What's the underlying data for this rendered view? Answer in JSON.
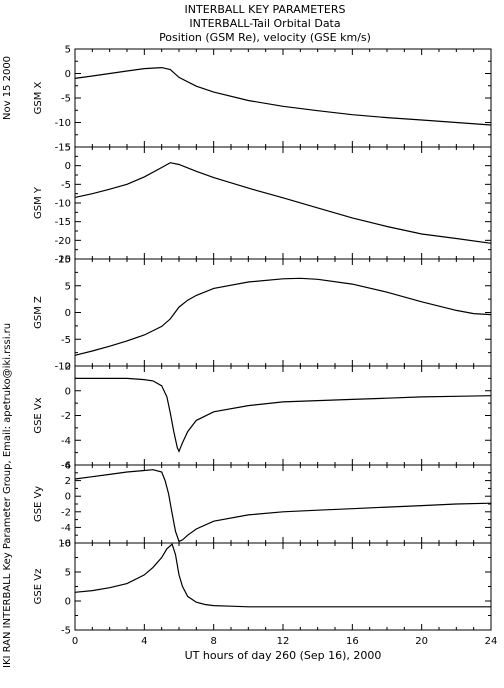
{
  "side_texts": {
    "date": "Nov 15 2000",
    "credit": "IKI RAN INTERBALL Key Parameter Group, Email: apetruko@iki.rssi.ru"
  },
  "chart_data": {
    "type": "line",
    "title_lines": [
      "INTERBALL KEY PARAMETERS",
      "INTERBALL-Tail Orbital Data",
      "Position (GSM Re), velocity (GSE km/s)"
    ],
    "xlabel": "UT hours of day 260 (Sep 16), 2000",
    "xlim": [
      0,
      24
    ],
    "xticks": [
      "0",
      "4",
      "8",
      "12",
      "16",
      "20",
      "24"
    ],
    "grid": false,
    "color": "#000000",
    "panels": [
      {
        "ylabel": "GSM X",
        "ylim": [
          -15,
          5
        ],
        "yticks": [
          "5",
          "0",
          "-5",
          "-10",
          "-15"
        ],
        "x": [
          0,
          1,
          2,
          3,
          4,
          5,
          5.5,
          6,
          7,
          8,
          10,
          12,
          14,
          16,
          18,
          20,
          22,
          24
        ],
        "y": [
          -1,
          -0.5,
          0,
          0.5,
          1,
          1.2,
          0.8,
          -0.8,
          -2.6,
          -3.8,
          -5.5,
          -6.7,
          -7.6,
          -8.4,
          -9.0,
          -9.5,
          -10.0,
          -10.5
        ]
      },
      {
        "ylabel": "GSM Y",
        "ylim": [
          -25,
          5
        ],
        "yticks": [
          "5",
          "0",
          "-5",
          "-10",
          "-15",
          "-20",
          "-25"
        ],
        "x": [
          0,
          1,
          2,
          3,
          4,
          5,
          5.5,
          6,
          7,
          8,
          10,
          12,
          14,
          16,
          18,
          20,
          22,
          24
        ],
        "y": [
          -8.5,
          -7.5,
          -6.3,
          -5,
          -3,
          -0.5,
          0.8,
          0.3,
          -1.5,
          -3.2,
          -6.0,
          -8.6,
          -11.3,
          -14.0,
          -16.3,
          -18.3,
          -19.5,
          -20.8
        ]
      },
      {
        "ylabel": "GSM Z",
        "ylim": [
          -10,
          10
        ],
        "yticks": [
          "10",
          "5",
          "0",
          "-5",
          "-10"
        ],
        "x": [
          0,
          1,
          2,
          3,
          4,
          5,
          5.5,
          6,
          6.5,
          7,
          8,
          10,
          12,
          13,
          14,
          16,
          18,
          20,
          22,
          23,
          24
        ],
        "y": [
          -8,
          -7.2,
          -6.3,
          -5.3,
          -4.2,
          -2.6,
          -1.2,
          1.0,
          2.3,
          3.2,
          4.5,
          5.7,
          6.3,
          6.4,
          6.2,
          5.3,
          3.8,
          2.0,
          0.4,
          -0.2,
          -0.4
        ]
      },
      {
        "ylabel": "GSE Vx",
        "ylim": [
          -6,
          2
        ],
        "yticks": [
          "2",
          "0",
          "-2",
          "-4",
          "-6"
        ],
        "x": [
          0,
          1,
          2,
          3,
          4,
          4.5,
          5,
          5.3,
          5.5,
          5.7,
          5.9,
          6.0,
          6.2,
          6.5,
          7,
          8,
          10,
          12,
          14,
          16,
          18,
          20,
          22,
          24
        ],
        "y": [
          1.0,
          1.0,
          1.0,
          1.0,
          0.9,
          0.8,
          0.4,
          -0.5,
          -1.8,
          -3.3,
          -4.6,
          -4.9,
          -4.2,
          -3.3,
          -2.4,
          -1.7,
          -1.2,
          -0.9,
          -0.8,
          -0.7,
          -0.6,
          -0.5,
          -0.45,
          -0.4
        ]
      },
      {
        "ylabel": "GSE Vy",
        "ylim": [
          -6,
          4
        ],
        "yticks": [
          "4",
          "2",
          "0",
          "-2",
          "-4",
          "-6"
        ],
        "x": [
          0,
          1,
          2,
          3,
          4,
          4.5,
          5,
          5.2,
          5.4,
          5.6,
          5.8,
          6.0,
          6.2,
          6.5,
          7,
          8,
          10,
          12,
          14,
          16,
          18,
          20,
          22,
          24
        ],
        "y": [
          2.2,
          2.5,
          2.8,
          3.1,
          3.3,
          3.4,
          3.1,
          2.0,
          0.3,
          -2.2,
          -4.5,
          -5.8,
          -5.6,
          -5.0,
          -4.2,
          -3.2,
          -2.4,
          -2.0,
          -1.8,
          -1.6,
          -1.4,
          -1.2,
          -1.0,
          -0.9
        ]
      },
      {
        "ylabel": "GSE Vz",
        "ylim": [
          -5,
          10
        ],
        "yticks": [
          "10",
          "5",
          "0",
          "-5"
        ],
        "x": [
          0,
          1,
          2,
          3,
          4,
          4.5,
          5,
          5.3,
          5.6,
          5.8,
          6.0,
          6.2,
          6.5,
          7,
          7.5,
          8,
          9,
          10,
          12,
          16,
          20,
          24
        ],
        "y": [
          1.5,
          1.8,
          2.3,
          3.0,
          4.5,
          5.8,
          7.5,
          9.0,
          9.8,
          8.0,
          4.5,
          2.5,
          0.8,
          -0.2,
          -0.6,
          -0.8,
          -0.9,
          -1.0,
          -1.0,
          -1.0,
          -1.0,
          -1.0
        ]
      }
    ]
  }
}
